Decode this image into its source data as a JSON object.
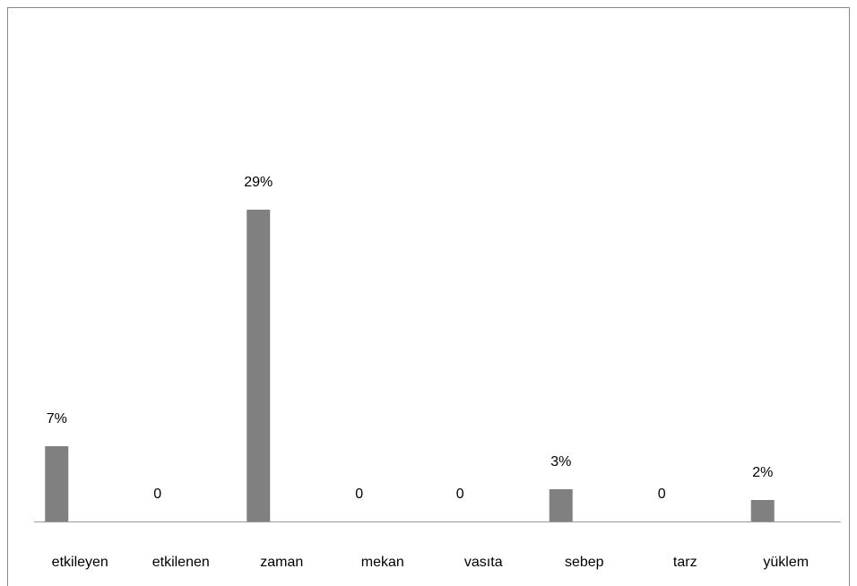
{
  "chart_data": {
    "type": "bar",
    "categories": [
      "etkileyen",
      "etkilenen",
      "zaman",
      "mekan",
      "vasıta",
      "sebep",
      "tarz",
      "yüklem"
    ],
    "values": [
      7,
      0,
      29,
      0,
      0,
      3,
      0,
      2
    ],
    "value_labels": [
      "7%",
      "0",
      "29%",
      "0",
      "0",
      "3%",
      "0",
      "2%"
    ],
    "color": "#808080"
  }
}
